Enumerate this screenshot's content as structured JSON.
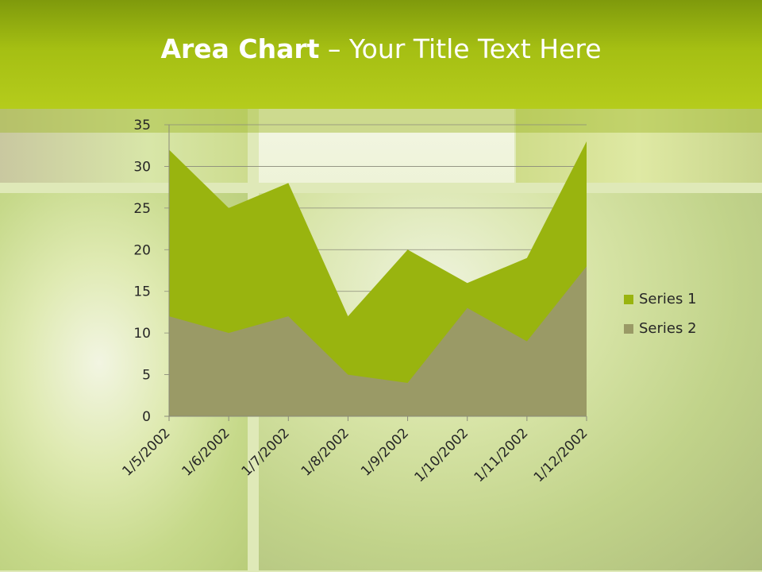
{
  "slide": {
    "title_bold": "Area Chart",
    "title_rest": " – Your Title Text Here"
  },
  "colors": {
    "series1": "#99b40f",
    "series2": "#9a9a66",
    "header": "#a5bf13"
  },
  "chart_data": {
    "type": "area",
    "title": "",
    "xlabel": "",
    "ylabel": "",
    "categories": [
      "1/5/2002",
      "1/6/2002",
      "1/7/2002",
      "1/8/2002",
      "1/9/2002",
      "1/10/2002",
      "1/11/2002",
      "1/12/2002"
    ],
    "series": [
      {
        "name": "Series 1",
        "values": [
          32,
          25,
          28,
          12,
          20,
          16,
          19,
          33
        ]
      },
      {
        "name": "Series 2",
        "values": [
          12,
          10,
          12,
          5,
          4,
          13,
          9,
          18
        ]
      }
    ],
    "ylim": [
      0,
      35
    ],
    "yticks": [
      0,
      5,
      10,
      15,
      20,
      25,
      30,
      35
    ],
    "grid": true,
    "legend": "right"
  }
}
